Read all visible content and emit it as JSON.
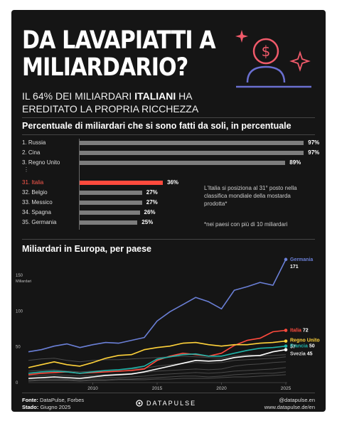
{
  "title_line1": "DA LAVAPIATTI A",
  "title_line2": "MILIARDARIO?",
  "subtitle_pre": "IL 64% DEI MILIARDARI ",
  "subtitle_bold": "ITALIANI",
  "subtitle_post": " HA EREDITATO LA PROPRIA RICCHEZZA",
  "ranking_title": "Percentuale di miliardari che si sono fatti da soli, in percentuale",
  "note_italy": "L'Italia si posiziona al 31° posto nella classifica mondiale della mostarda prodotta*",
  "note_footnote": "*nei paesi con più di 10 miliardari",
  "europe_title": "Miliardari in Europa, per paese",
  "footer": {
    "source_label": "Fonte:",
    "source_value": "DataPulse, Forbes",
    "state_label": "Stado:",
    "state_value": "Giugno 2025",
    "brand": "DATAPULSE",
    "handle": "@datapulse.en",
    "url": "www.datapulse.de/en"
  },
  "colors": {
    "accent_red": "#ff4a3d",
    "germany": "#6a7fd6",
    "italy": "#ff4a3d",
    "uk": "#ffd23a",
    "france": "#1fb3a8",
    "sweden": "#ffffff",
    "other": "#4a4a4a",
    "icon_pink": "#f05a6a",
    "icon_purple": "#6a6fd0"
  },
  "icon_name": "person-with-dollar-icon",
  "chart_data": [
    {
      "type": "bar",
      "orientation": "horizontal",
      "title": "Percentuale di miliardari che si sono fatti da soli, in percentuale",
      "rows": [
        {
          "rank": "1.",
          "country": "Russia",
          "value": 97,
          "label": "97%",
          "highlight": false
        },
        {
          "rank": "2.",
          "country": "Cina",
          "value": 97,
          "label": "97%",
          "highlight": false
        },
        {
          "rank": "3.",
          "country": "Regno Unito",
          "value": 89,
          "label": "89%",
          "highlight": false
        },
        {
          "rank": "31.",
          "country": "Italia",
          "value": 36,
          "label": "36%",
          "highlight": true
        },
        {
          "rank": "32.",
          "country": "Belgio",
          "value": 27,
          "label": "27%",
          "highlight": false
        },
        {
          "rank": "33.",
          "country": "Messico",
          "value": 27,
          "label": "27%",
          "highlight": false
        },
        {
          "rank": "34.",
          "country": "Spagna",
          "value": 26,
          "label": "26%",
          "highlight": false
        },
        {
          "rank": "35.",
          "country": "Germania",
          "value": 25,
          "label": "25%",
          "highlight": false
        }
      ],
      "gap_marker": "⋮",
      "xlim": [
        0,
        100
      ]
    },
    {
      "type": "line",
      "title": "Miliardari in Europa, per paese",
      "ylabel": "Miliardari",
      "ylim": [
        0,
        150
      ],
      "yticks": [
        0,
        50,
        100,
        150
      ],
      "xlim": [
        2005,
        2025
      ],
      "xticks": [
        2010,
        2015,
        2020,
        2025
      ],
      "grid": false,
      "highlighted_series": [
        {
          "name": "Germania",
          "end_label": "171",
          "x": [
            2005,
            2006,
            2007,
            2008,
            2009,
            2010,
            2011,
            2012,
            2013,
            2014,
            2015,
            2016,
            2017,
            2018,
            2019,
            2020,
            2021,
            2022,
            2023,
            2024,
            2025
          ],
          "y": [
            42,
            45,
            50,
            53,
            48,
            52,
            55,
            54,
            58,
            62,
            85,
            98,
            108,
            118,
            112,
            102,
            128,
            133,
            139,
            135,
            171
          ]
        },
        {
          "name": "Italia",
          "end_label": "72",
          "x": [
            2005,
            2006,
            2007,
            2008,
            2009,
            2010,
            2011,
            2012,
            2013,
            2014,
            2015,
            2016,
            2017,
            2018,
            2019,
            2020,
            2021,
            2022,
            2023,
            2024,
            2025
          ],
          "y": [
            10,
            12,
            13,
            14,
            12,
            13,
            14,
            15,
            16,
            18,
            30,
            36,
            40,
            38,
            36,
            40,
            51,
            58,
            61,
            70,
            72
          ]
        },
        {
          "name": "Regno Unito",
          "end_label": "57",
          "x": [
            2005,
            2006,
            2007,
            2008,
            2009,
            2010,
            2011,
            2012,
            2013,
            2014,
            2015,
            2016,
            2017,
            2018,
            2019,
            2020,
            2021,
            2022,
            2023,
            2024,
            2025
          ],
          "y": [
            20,
            24,
            28,
            24,
            22,
            27,
            33,
            37,
            38,
            45,
            48,
            50,
            54,
            55,
            52,
            50,
            52,
            52,
            54,
            55,
            57
          ]
        },
        {
          "name": "Francia",
          "end_label": "50",
          "x": [
            2005,
            2006,
            2007,
            2008,
            2009,
            2010,
            2011,
            2012,
            2013,
            2014,
            2015,
            2016,
            2017,
            2018,
            2019,
            2020,
            2021,
            2022,
            2023,
            2024,
            2025
          ],
          "y": [
            12,
            14,
            15,
            14,
            12,
            14,
            16,
            17,
            19,
            22,
            32,
            35,
            38,
            39,
            36,
            36,
            40,
            44,
            47,
            48,
            50
          ]
        },
        {
          "name": "Svezia",
          "end_label": "45",
          "x": [
            2005,
            2006,
            2007,
            2008,
            2009,
            2010,
            2011,
            2012,
            2013,
            2014,
            2015,
            2016,
            2017,
            2018,
            2019,
            2020,
            2021,
            2022,
            2023,
            2024,
            2025
          ],
          "y": [
            5,
            6,
            7,
            6,
            5,
            7,
            9,
            10,
            11,
            14,
            18,
            22,
            26,
            30,
            29,
            30,
            34,
            36,
            37,
            42,
            45
          ]
        }
      ],
      "other_series": [
        {
          "y": [
            30,
            32,
            33,
            30,
            28,
            30,
            31,
            31,
            32,
            33,
            34,
            35,
            36,
            35,
            34,
            33,
            36,
            38,
            36,
            37,
            38
          ]
        },
        {
          "y": [
            15,
            16,
            17,
            15,
            14,
            15,
            16,
            17,
            18,
            19,
            22,
            24,
            26,
            27,
            26,
            27,
            30,
            31,
            32,
            33,
            35
          ]
        },
        {
          "y": [
            8,
            9,
            10,
            9,
            8,
            9,
            10,
            11,
            12,
            13,
            15,
            16,
            17,
            18,
            17,
            18,
            22,
            24,
            25,
            27,
            28
          ]
        },
        {
          "y": [
            4,
            5,
            5,
            4,
            4,
            5,
            6,
            6,
            7,
            8,
            10,
            11,
            12,
            13,
            12,
            13,
            15,
            16,
            17,
            18,
            20
          ]
        },
        {
          "y": [
            2,
            3,
            3,
            3,
            2,
            3,
            3,
            4,
            4,
            5,
            6,
            7,
            8,
            8,
            7,
            8,
            10,
            11,
            12,
            12,
            14
          ]
        },
        {
          "y": [
            1,
            2,
            2,
            2,
            1,
            2,
            2,
            3,
            3,
            3,
            4,
            4,
            5,
            5,
            5,
            6,
            7,
            7,
            8,
            9,
            10
          ]
        }
      ]
    }
  ]
}
